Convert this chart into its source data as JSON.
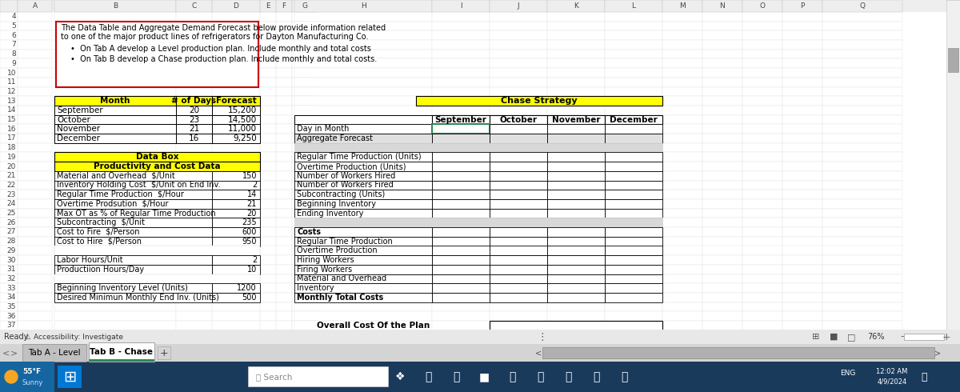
{
  "description_text_line1": "The Data Table and Aggregate Demand Forecast below provide information related",
  "description_text_line2": "to one of the major product lines of refrigerators for Dayton Manufacturing Co.",
  "bullets": [
    "On Tab A develop a Level production plan. Include monthly and total costs",
    "On Tab B develop a Chase production plan. Include monthly and total costs."
  ],
  "desc_border_color": "#cc0000",
  "forecast_headers": [
    "Month",
    "# of Days",
    "Forecast"
  ],
  "forecast_rows": [
    [
      "September",
      "20",
      "15,200"
    ],
    [
      "October",
      "23",
      "14,500"
    ],
    [
      "November",
      "21",
      "11,000"
    ],
    [
      "December",
      "16",
      "9,250"
    ]
  ],
  "header_bg": "#ffff00",
  "databox_title": "Data Box",
  "databox_subtitle": "Productivity and Cost Data",
  "databox_rows": [
    [
      "Material and Overhead  $/Unit",
      "150"
    ],
    [
      "Inventory Holding Cost  $/Unit on End Inv.",
      "2"
    ],
    [
      "Regular Time Production  $/Hour",
      "14"
    ],
    [
      "Overtime Prodsution  $/Hour",
      "21"
    ],
    [
      "Max OT as % of Regular Time Production",
      "20"
    ],
    [
      "Subcontracting  $/Unit",
      "235"
    ],
    [
      "Cost to Fire  $/Person",
      "600"
    ],
    [
      "Cost to Hire  $/Person",
      "950"
    ],
    [
      "",
      ""
    ],
    [
      "Labor Hours/Unit",
      "2"
    ],
    [
      "Productiion Hours/Day",
      "10"
    ],
    [
      "",
      ""
    ],
    [
      "Beginning Inventory Level (Units)",
      "1200"
    ],
    [
      "Desired Minimun Monthly End Inv. (Units)",
      "500"
    ]
  ],
  "chase_title": "Chase Strategy",
  "chase_months": [
    "September",
    "October",
    "November",
    "December"
  ],
  "chase_labels": [
    "Day in Month",
    "Aggregate Forecast",
    "",
    "Regular Time Production (Units)",
    "Overtime Production (Units)",
    "Number of Workers Hired",
    "Number of Workers Fired",
    "Subcontracting (Units)",
    "Beginning Inventory",
    "Ending Inventory",
    "",
    "Costs",
    "Regular Time Production",
    "Overtime Production",
    "Hiring Workers",
    "Firing Workers",
    "Material and Overhead",
    "Inventory",
    "Monthly Total Costs"
  ],
  "overall_label": "Overall Cost Of the Plan",
  "tab_inactive": "Tab A - Level",
  "tab_active": "Tab B - Chase",
  "row_nums": [
    4,
    5,
    6,
    7,
    8,
    9,
    10,
    11,
    12,
    13,
    14,
    15,
    16,
    17,
    18,
    19,
    20,
    21,
    22,
    23,
    24,
    25,
    26,
    27,
    28,
    29,
    30,
    31,
    32,
    33,
    34,
    35,
    36,
    37
  ],
  "yellow": "#ffff00",
  "cell_ec": "#000000",
  "gray_ec": "#b0b0b0",
  "light_gray": "#d8d8d8",
  "agg_gray": "#e0e0e0",
  "row_header_bg": "#e8e8e8",
  "spreadsheet_bg": "#ffffff",
  "tab_bar_bg": "#c8c8c8",
  "status_bar_bg": "#d0d0d0",
  "taskbar_bg": "#1a3a5c"
}
